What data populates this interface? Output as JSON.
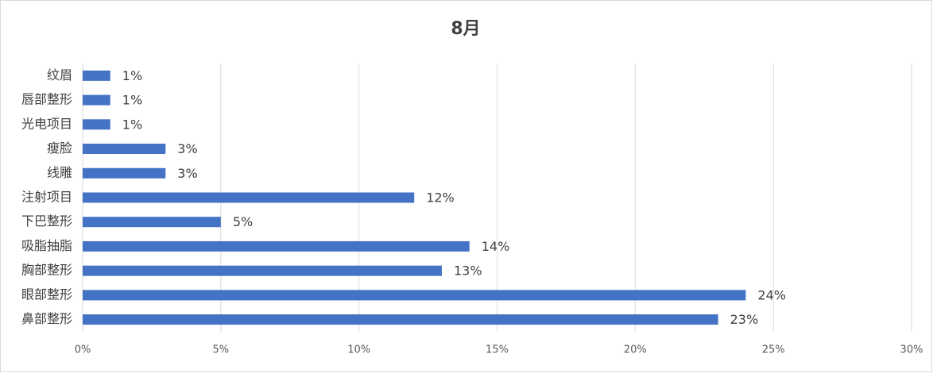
{
  "chart_data": {
    "type": "hbar",
    "title": "8月",
    "categories": [
      "纹眉",
      "唇部整形",
      "光电项目",
      "瘦脸",
      "线雕",
      "注射项目",
      "下巴整形",
      "吸脂抽脂",
      "胸部整形",
      "眼部整形",
      "鼻部整形"
    ],
    "values": [
      1,
      1,
      1,
      3,
      3,
      12,
      5,
      14,
      13,
      24,
      23
    ],
    "value_labels": [
      "1%",
      "1%",
      "1%",
      "3%",
      "3%",
      "12%",
      "5%",
      "14%",
      "13%",
      "24%",
      "23%"
    ],
    "color": "#4472c4",
    "xlim": [
      0,
      30
    ],
    "xticks": [
      {
        "value": 0,
        "label": "0%"
      },
      {
        "value": 5,
        "label": "5%"
      },
      {
        "value": 10,
        "label": "10%"
      },
      {
        "value": 15,
        "label": "15%"
      },
      {
        "value": 20,
        "label": "20%"
      },
      {
        "value": 25,
        "label": "25%"
      },
      {
        "value": 30,
        "label": "30%"
      }
    ],
    "grid": true
  }
}
